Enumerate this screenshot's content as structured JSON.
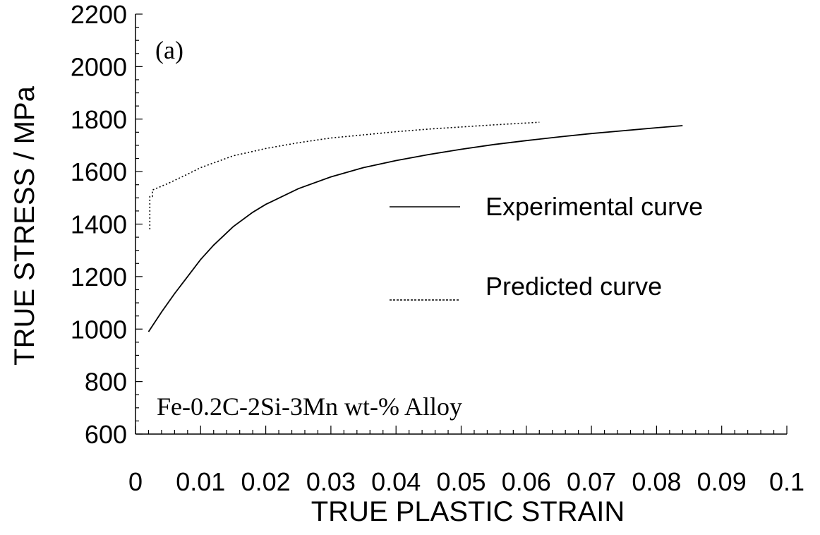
{
  "chart_data": {
    "type": "line",
    "xlabel": "TRUE PLASTIC STRAIN",
    "ylabel": "TRUE STRESS / MPa",
    "xlim": [
      0,
      0.1
    ],
    "ylim": [
      600,
      2200
    ],
    "x_ticks": [
      "0",
      "0.01",
      "0.02",
      "0.03",
      "0.04",
      "0.05",
      "0.06",
      "0.07",
      "0.08",
      "0.09",
      "0.1"
    ],
    "y_ticks": [
      "600",
      "800",
      "1000",
      "1200",
      "1400",
      "1600",
      "1800",
      "2000",
      "2200"
    ],
    "annotations": [
      "(a)",
      "Fe-0.2C-2Si-3Mn wt-% Alloy"
    ],
    "legend_position": "center-right",
    "grid": false,
    "series": [
      {
        "name": "Experimental curve",
        "style": "solid",
        "x": [
          0.002,
          0.004,
          0.006,
          0.008,
          0.01,
          0.012,
          0.015,
          0.018,
          0.02,
          0.025,
          0.03,
          0.035,
          0.04,
          0.045,
          0.05,
          0.055,
          0.06,
          0.065,
          0.07,
          0.075,
          0.08,
          0.084
        ],
        "y": [
          990,
          1065,
          1135,
          1200,
          1265,
          1320,
          1390,
          1445,
          1475,
          1535,
          1580,
          1615,
          1642,
          1665,
          1685,
          1703,
          1718,
          1732,
          1745,
          1756,
          1767,
          1775
        ]
      },
      {
        "name": "Predicted curve",
        "style": "dotted",
        "x": [
          0.0022,
          0.0022,
          0.0026,
          0.0026,
          0.005,
          0.008,
          0.01,
          0.015,
          0.02,
          0.025,
          0.03,
          0.035,
          0.04,
          0.045,
          0.05,
          0.055,
          0.06,
          0.062
        ],
        "y": [
          1380,
          1505,
          1505,
          1530,
          1555,
          1590,
          1615,
          1660,
          1688,
          1710,
          1728,
          1740,
          1752,
          1762,
          1770,
          1778,
          1785,
          1788
        ]
      }
    ]
  }
}
